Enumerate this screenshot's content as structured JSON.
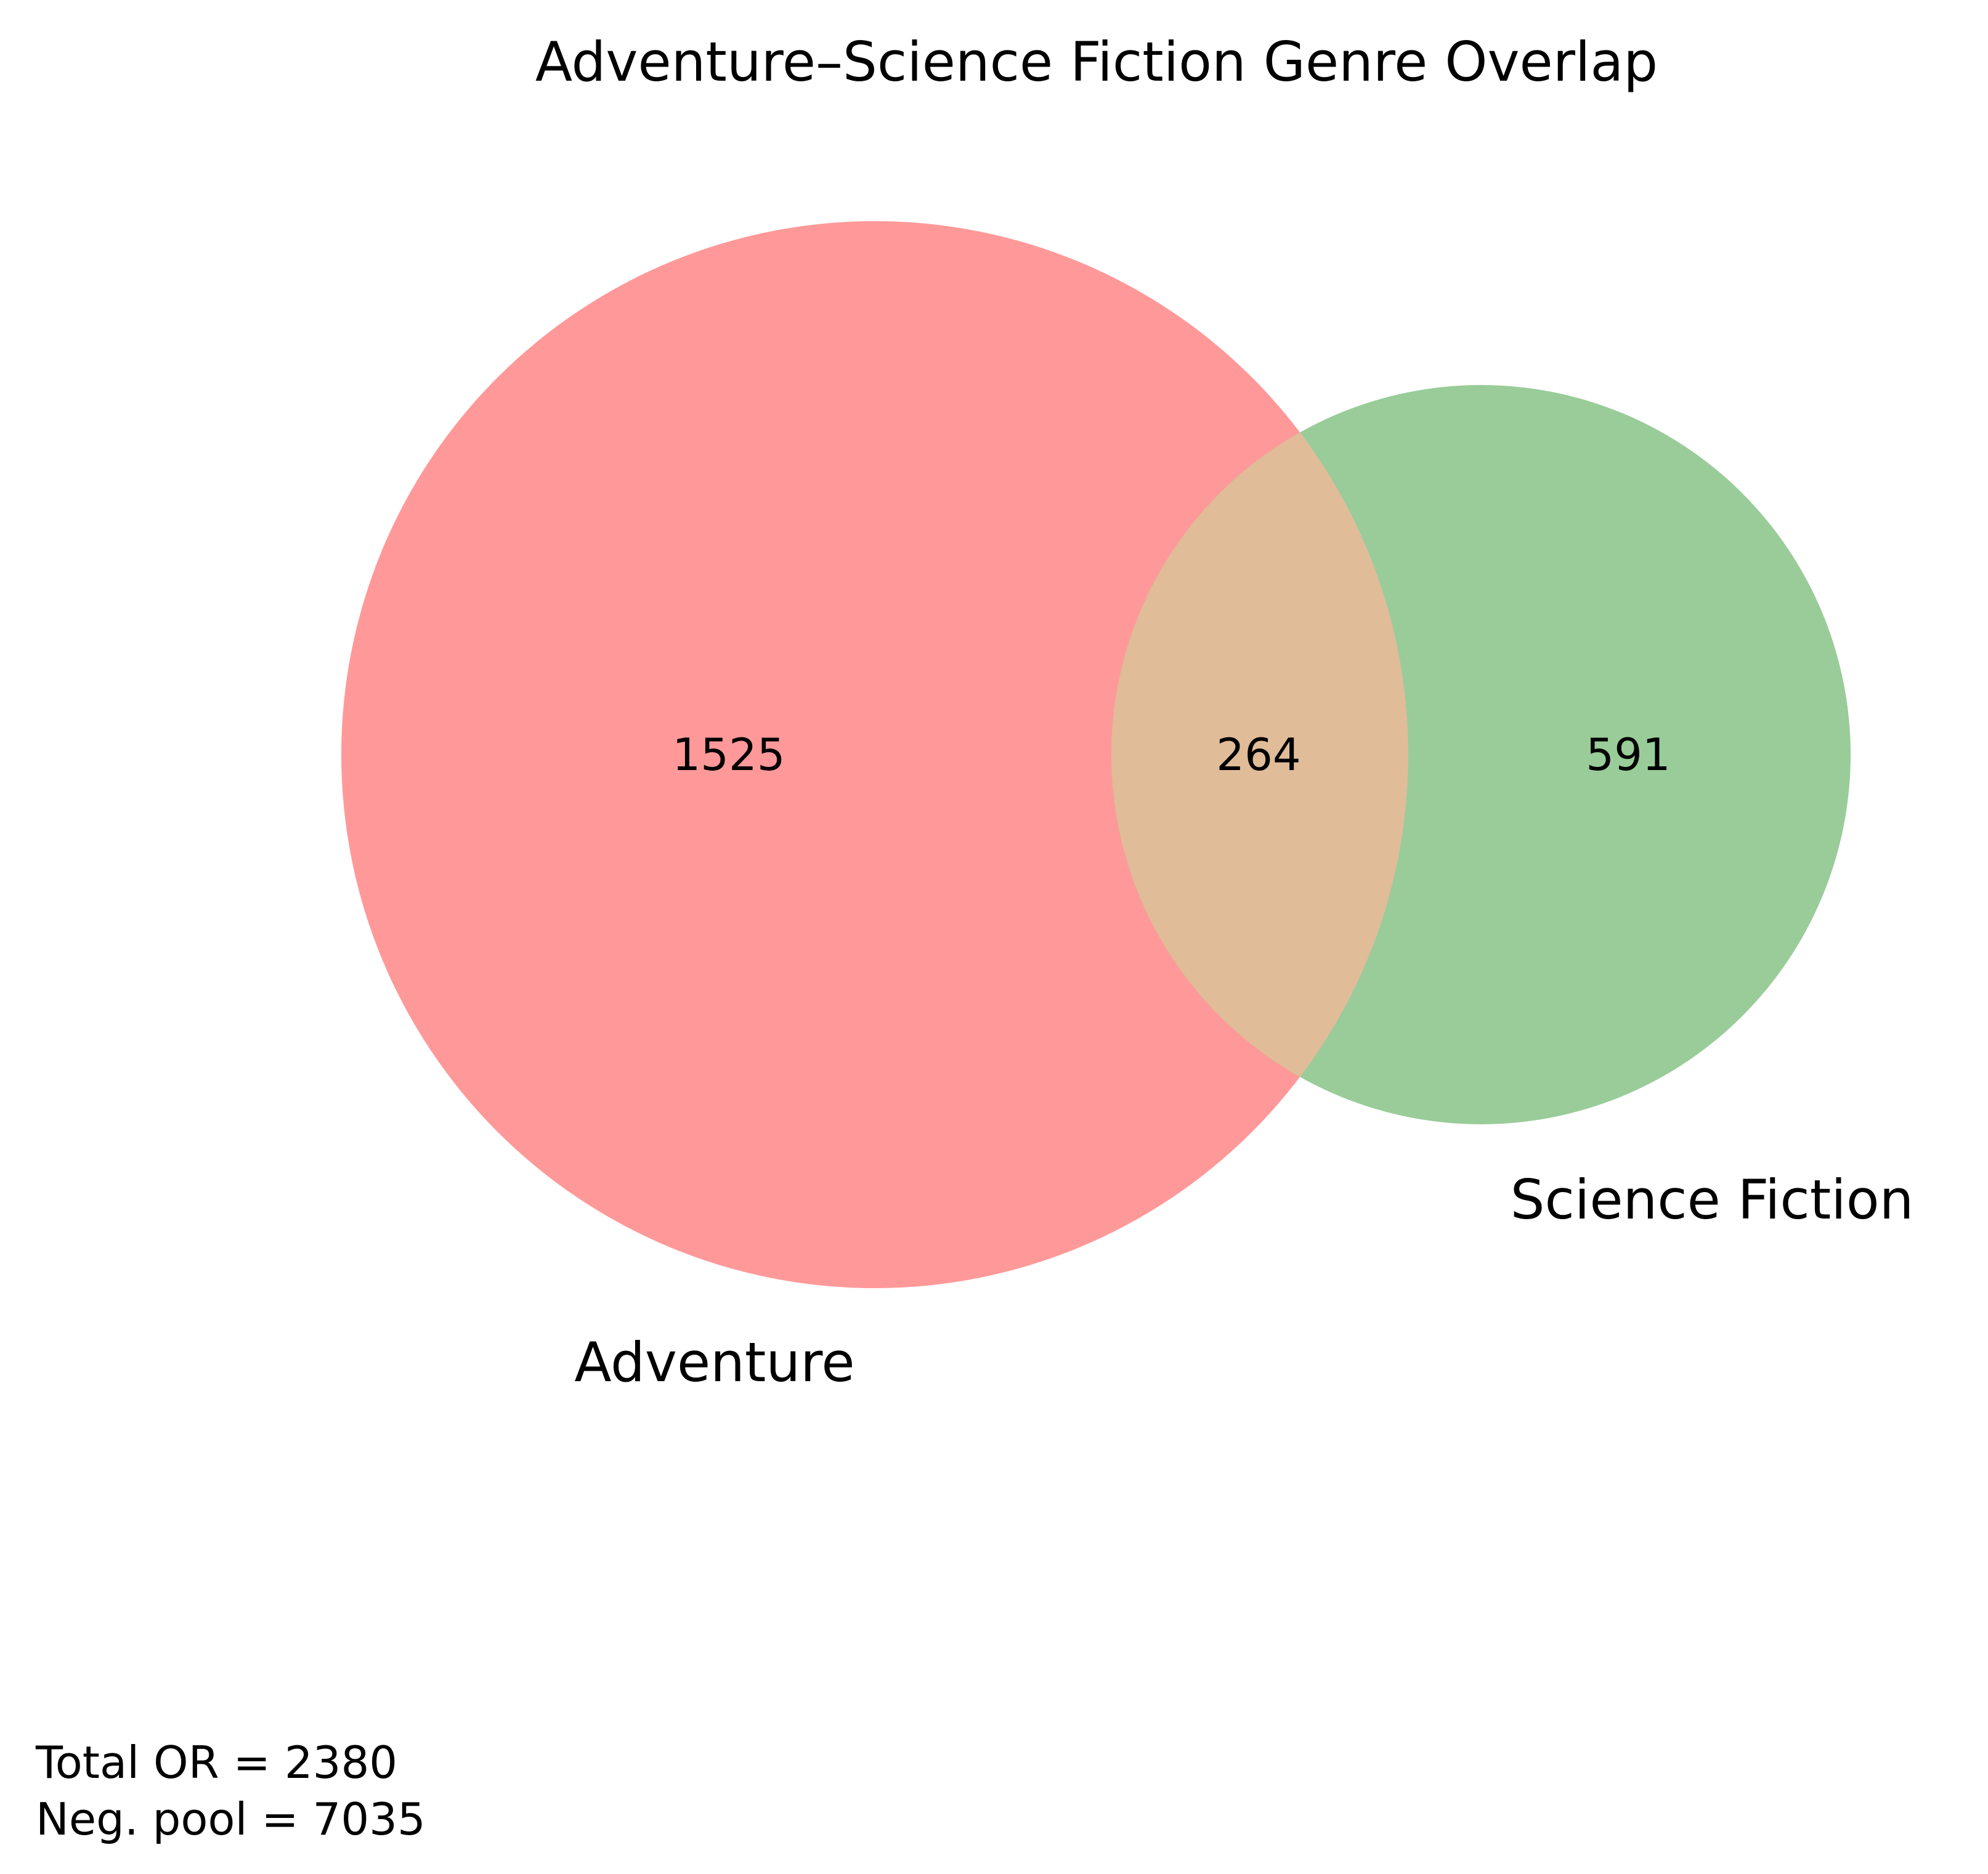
{
  "title": "Adventure–Science Fiction Genre Overlap",
  "sets": [
    {
      "name": "Adventure",
      "only_count": "1525",
      "color": "#ff9999"
    },
    {
      "name": "Science Fiction",
      "only_count": "591",
      "color": "#99cc99"
    }
  ],
  "intersection": {
    "count": "264",
    "color": "#e0bc99"
  },
  "footnotes": {
    "total_or": "Total OR = 2380",
    "neg_pool": "Neg. pool = 7035"
  }
}
